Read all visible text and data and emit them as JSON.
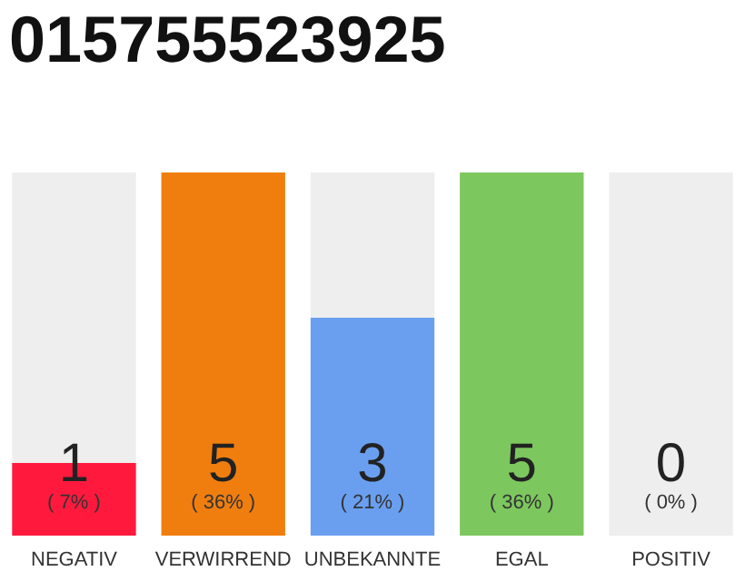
{
  "chart_data": {
    "type": "bar",
    "title": "015755523925",
    "categories": [
      "NEGATIV",
      "VERWIRREND",
      "UNBEKANNTE",
      "EGAL",
      "POSITIV"
    ],
    "stacked": true,
    "series": [
      {
        "colors": [
          "#ff1a3d",
          "#f07e0e",
          "#6a9ff0",
          "#7dc75f",
          "#cccccc"
        ],
        "values": [
          1,
          5,
          3,
          5,
          0
        ],
        "value_labels": [
          "1",
          "5",
          "3",
          "5",
          null
        ]
      },
      {
        "color": "#eeeeee",
        "values": [
          4,
          0,
          2,
          0,
          5
        ]
      }
    ],
    "ylim": [
      0,
      5
    ],
    "tick_labels": "x",
    "grid": false,
    "legend": false,
    "annotations": [
      "( 7% )",
      "( 36% )",
      "( 21% )",
      "( 36% )",
      "( 0% )",
      "0"
    ]
  }
}
